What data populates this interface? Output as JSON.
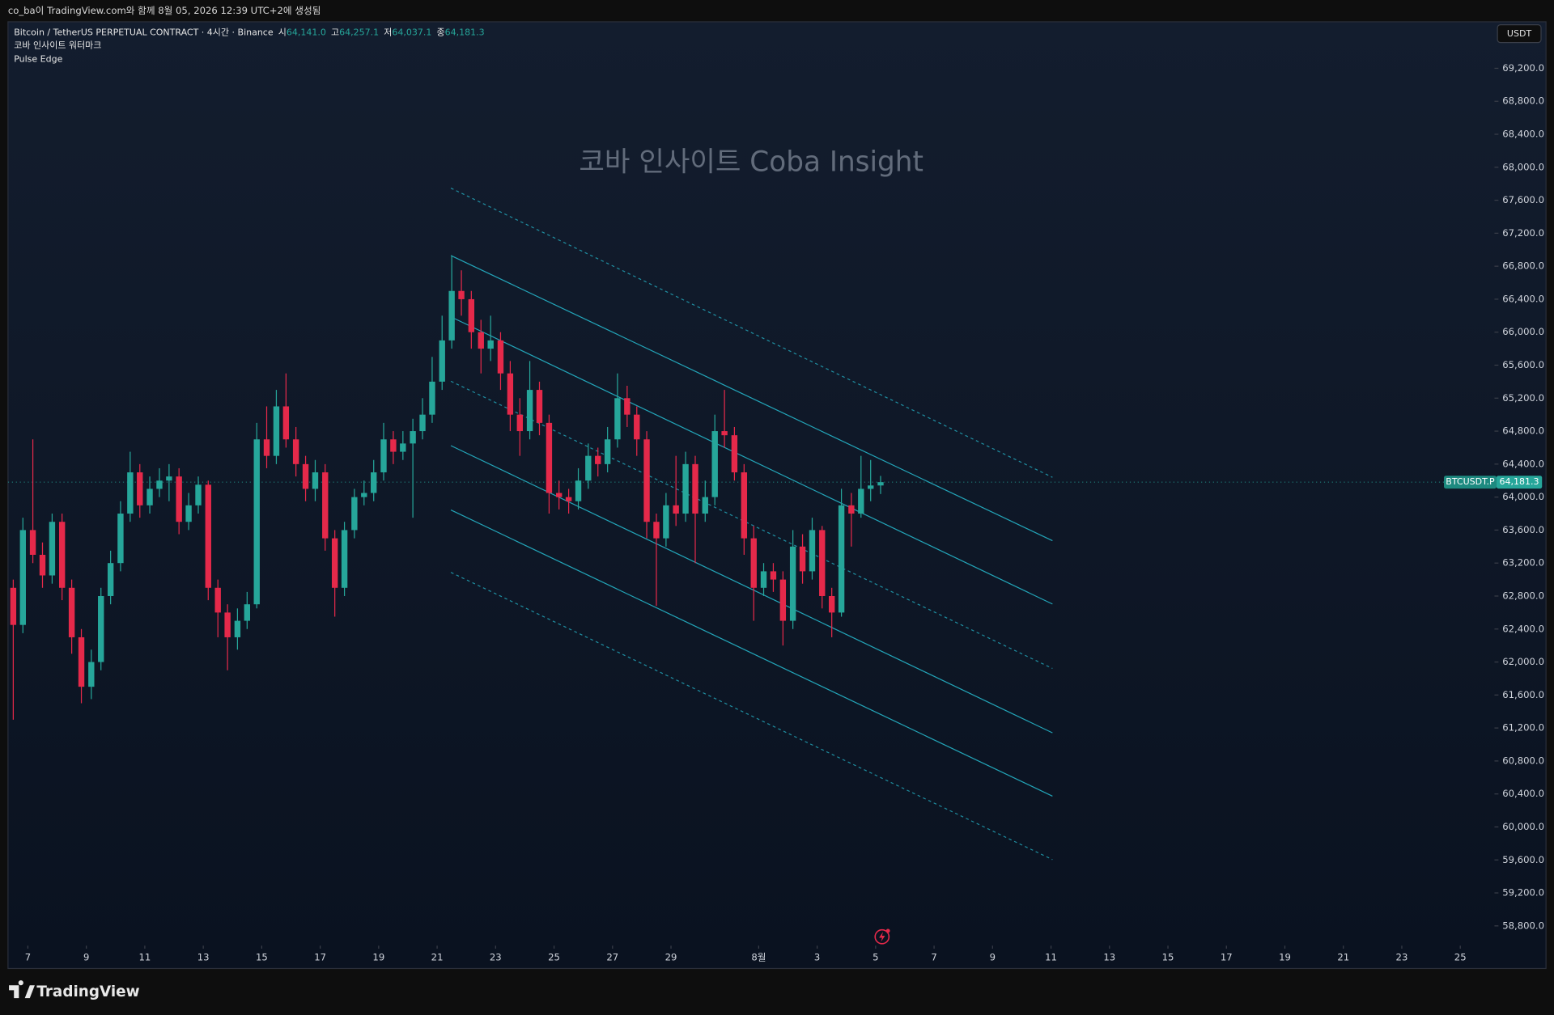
{
  "header": {
    "caption": "co_ba이 TradingView.com와 함께 8월 05, 2026 12:39 UTC+2에 생성됨"
  },
  "legend": {
    "symbol": "Bitcoin / TetherUS PERPETUAL CONTRACT · 4시간 · Binance",
    "ohlc": [
      {
        "label": "시",
        "value": "64,141.0"
      },
      {
        "label": "고",
        "value": "64,257.1"
      },
      {
        "label": "저",
        "value": "64,037.1"
      },
      {
        "label": "종",
        "value": "64,181.3"
      }
    ],
    "indicators": [
      "코바 인사이트 워터마크",
      "Pulse Edge"
    ]
  },
  "footer": {
    "brand": "TradingView"
  },
  "chart_data": {
    "type": "candlestick",
    "watermark": "코바 인사이트 Coba Insight",
    "currency": "USDT",
    "symbol_tag": "BTCUSDT.P",
    "last_price_label": "64,181.3",
    "up_color": "#26a69a",
    "down_color": "#e5294a",
    "x": [
      6.5,
      6.83,
      7.17,
      7.5,
      7.83,
      8.17,
      8.5,
      8.83,
      9.17,
      9.5,
      9.83,
      10.17,
      10.5,
      10.83,
      11.17,
      11.5,
      11.83,
      12.17,
      12.5,
      12.83,
      13.17,
      13.5,
      13.83,
      14.17,
      14.5,
      14.83,
      15.17,
      15.5,
      15.83,
      16.17,
      16.5,
      16.83,
      17.17,
      17.5,
      17.83,
      18.17,
      18.5,
      18.83,
      19.17,
      19.5,
      19.83,
      20.17,
      20.5,
      20.83,
      21.17,
      21.5,
      21.83,
      22.17,
      22.5,
      22.83,
      23.17,
      23.5,
      23.83,
      24.17,
      24.5,
      24.83,
      25.17,
      25.5,
      25.83,
      26.17,
      26.5,
      26.83,
      27.17,
      27.5,
      27.83,
      28.17,
      28.5,
      28.83,
      29.17,
      29.5,
      29.83,
      30.17,
      30.5,
      30.83,
      31.17,
      31.5,
      31.83,
      32.17,
      32.5,
      32.83,
      33.17,
      33.5,
      33.83,
      34.17,
      34.5,
      34.83,
      35.17,
      35.5,
      35.83,
      36.17
    ],
    "open": [
      62900,
      62450,
      63600,
      63300,
      63050,
      63700,
      62900,
      62300,
      61700,
      62000,
      62800,
      63200,
      63800,
      64300,
      63900,
      64100,
      64200,
      64250,
      63700,
      63900,
      64150,
      62900,
      62600,
      62300,
      62500,
      62700,
      64700,
      64500,
      65100,
      64700,
      64400,
      64100,
      64300,
      63500,
      62900,
      63600,
      64000,
      64050,
      64300,
      64700,
      64550,
      64650,
      64800,
      65000,
      65400,
      65900,
      66500,
      66400,
      66000,
      65800,
      65900,
      65500,
      65000,
      64800,
      65300,
      64900,
      64050,
      64000,
      63950,
      64200,
      64500,
      64400,
      64700,
      65200,
      65000,
      64700,
      63700,
      63500,
      63900,
      63800,
      64400,
      63800,
      64000,
      64800,
      64750,
      64300,
      63500,
      62900,
      63100,
      63000,
      62500,
      63400,
      63100,
      63600,
      62800,
      62600,
      63900,
      63800,
      64100,
      64141
    ],
    "high": [
      63000,
      63750,
      64700,
      63450,
      63800,
      63800,
      63000,
      62400,
      62150,
      62900,
      63350,
      63950,
      64550,
      64400,
      64250,
      64350,
      64400,
      64350,
      64050,
      64250,
      64200,
      63000,
      62700,
      62650,
      62850,
      64900,
      65100,
      65300,
      65500,
      64850,
      64500,
      64450,
      64400,
      63600,
      63700,
      64100,
      64200,
      64450,
      64900,
      64800,
      64800,
      64950,
      65200,
      65700,
      66200,
      66930,
      66750,
      66500,
      66150,
      66200,
      66000,
      65650,
      65200,
      65650,
      65400,
      65000,
      64200,
      64100,
      64350,
      64650,
      64600,
      64850,
      65500,
      65350,
      65100,
      64800,
      63800,
      64050,
      64500,
      64550,
      64500,
      64200,
      65000,
      65300,
      64850,
      64400,
      63650,
      63200,
      63200,
      63100,
      63600,
      63550,
      63750,
      63650,
      62900,
      64100,
      64050,
      64500,
      64450,
      64257.1
    ],
    "low": [
      61300,
      62350,
      63200,
      62900,
      62950,
      62750,
      62100,
      61500,
      61550,
      61900,
      62700,
      63100,
      63700,
      63750,
      63800,
      64000,
      63950,
      63550,
      63600,
      63800,
      62750,
      62300,
      61900,
      62150,
      62400,
      62650,
      64350,
      64400,
      64600,
      64250,
      63950,
      63950,
      63350,
      62550,
      62800,
      63500,
      63900,
      63950,
      64200,
      64400,
      64450,
      63750,
      64700,
      64900,
      65300,
      65800,
      66200,
      65800,
      65500,
      65650,
      65300,
      64800,
      64500,
      64700,
      64750,
      63800,
      63850,
      63800,
      63850,
      64100,
      64250,
      64300,
      64600,
      64850,
      64500,
      63500,
      62680,
      63400,
      63650,
      63700,
      63200,
      63700,
      63900,
      64600,
      64200,
      63300,
      62500,
      62800,
      62850,
      62200,
      62400,
      62950,
      63000,
      62650,
      62300,
      62550,
      63400,
      63750,
      63950,
      64037.1
    ],
    "close": [
      62450,
      63600,
      63300,
      63050,
      63700,
      62900,
      62300,
      61700,
      62000,
      62800,
      63200,
      63800,
      64300,
      63900,
      64100,
      64200,
      64250,
      63700,
      63900,
      64150,
      62900,
      62600,
      62300,
      62500,
      62700,
      64700,
      64500,
      65100,
      64700,
      64400,
      64100,
      64300,
      63500,
      62900,
      63600,
      64000,
      64050,
      64300,
      64700,
      64550,
      64650,
      64800,
      65000,
      65400,
      65900,
      66500,
      66400,
      66000,
      65800,
      65900,
      65500,
      65000,
      64800,
      65300,
      64900,
      64050,
      64000,
      63950,
      64200,
      64500,
      64400,
      64700,
      65200,
      65000,
      64700,
      63700,
      63500,
      63900,
      63800,
      64400,
      63800,
      64000,
      64800,
      64750,
      64300,
      63500,
      62900,
      63100,
      63000,
      62500,
      63400,
      63100,
      63600,
      62800,
      62600,
      63900,
      63800,
      64100,
      64141,
      64181.3
    ],
    "lines": [
      {
        "style": "dotted",
        "color": "#26b5c9",
        "x": [
          21.47,
          42.05
        ],
        "y": [
          67747,
          64240
        ]
      },
      {
        "style": "solid",
        "color": "#26b5c9",
        "x": [
          21.47,
          42.05
        ],
        "y": [
          66930,
          63471
        ]
      },
      {
        "style": "solid",
        "color": "#26b5c9",
        "x": [
          21.47,
          42.05
        ],
        "y": [
          66186,
          62703
        ]
      },
      {
        "style": "dotted",
        "color": "#26b5c9",
        "x": [
          21.47,
          42.05
        ],
        "y": [
          65405,
          61922
        ]
      },
      {
        "style": "solid",
        "color": "#26b5c9",
        "x": [
          21.47,
          42.05
        ],
        "y": [
          64624,
          61141
        ]
      },
      {
        "style": "solid",
        "color": "#26b5c9",
        "x": [
          21.47,
          42.05
        ],
        "y": [
          63844,
          60373
        ]
      },
      {
        "style": "dotted",
        "color": "#26b5c9",
        "x": [
          21.47,
          42.05
        ],
        "y": [
          63087,
          59604
        ]
      }
    ],
    "xlim": [
      6.32,
      57.17
    ],
    "xticks": [
      7,
      9,
      11,
      13,
      15,
      17,
      19,
      21,
      23,
      25,
      27,
      29,
      {
        "value": 32,
        "label": "8월"
      },
      {
        "value": 34,
        "label": "3"
      },
      {
        "value": 36,
        "label": "5"
      },
      {
        "value": 38,
        "label": "7"
      },
      {
        "value": 40,
        "label": "9"
      },
      {
        "value": 42,
        "label": "11"
      },
      {
        "value": 44,
        "label": "13"
      },
      {
        "value": 46,
        "label": "15"
      },
      {
        "value": 48,
        "label": "17"
      },
      {
        "value": 50,
        "label": "19"
      },
      {
        "value": 52,
        "label": "21"
      },
      {
        "value": 54,
        "label": "23"
      },
      {
        "value": 56,
        "label": "25"
      }
    ],
    "ylim": [
      58560,
      69764
    ],
    "yticks": [
      {
        "value": 58800,
        "label": "58,800.0"
      },
      {
        "value": 59200,
        "label": "59,200.0"
      },
      {
        "value": 59600,
        "label": "59,600.0"
      },
      {
        "value": 60000,
        "label": "60,000.0"
      },
      {
        "value": 60400,
        "label": "60,400.0"
      },
      {
        "value": 60800,
        "label": "60,800.0"
      },
      {
        "value": 61200,
        "label": "61,200.0"
      },
      {
        "value": 61600,
        "label": "61,600.0"
      },
      {
        "value": 62000,
        "label": "62,000.0"
      },
      {
        "value": 62400,
        "label": "62,400.0"
      },
      {
        "value": 62800,
        "label": "62,800.0"
      },
      {
        "value": 63200,
        "label": "63,200.0"
      },
      {
        "value": 63600,
        "label": "63,600.0"
      },
      {
        "value": 64000,
        "label": "64,000.0"
      },
      {
        "value": 64400,
        "label": "64,400.0"
      },
      {
        "value": 64800,
        "label": "64,800.0"
      },
      {
        "value": 65200,
        "label": "65,200.0"
      },
      {
        "value": 65600,
        "label": "65,600.0"
      },
      {
        "value": 66000,
        "label": "66,000.0"
      },
      {
        "value": 66400,
        "label": "66,400.0"
      },
      {
        "value": 66800,
        "label": "66,800.0"
      },
      {
        "value": 67200,
        "label": "67,200.0"
      },
      {
        "value": 67600,
        "label": "67,600.0"
      },
      {
        "value": 68000,
        "label": "68,000.0"
      },
      {
        "value": 68400,
        "label": "68,400.0"
      },
      {
        "value": 68800,
        "label": "68,800.0"
      },
      {
        "value": 69200,
        "label": "69,200.0"
      }
    ],
    "grid": false
  }
}
